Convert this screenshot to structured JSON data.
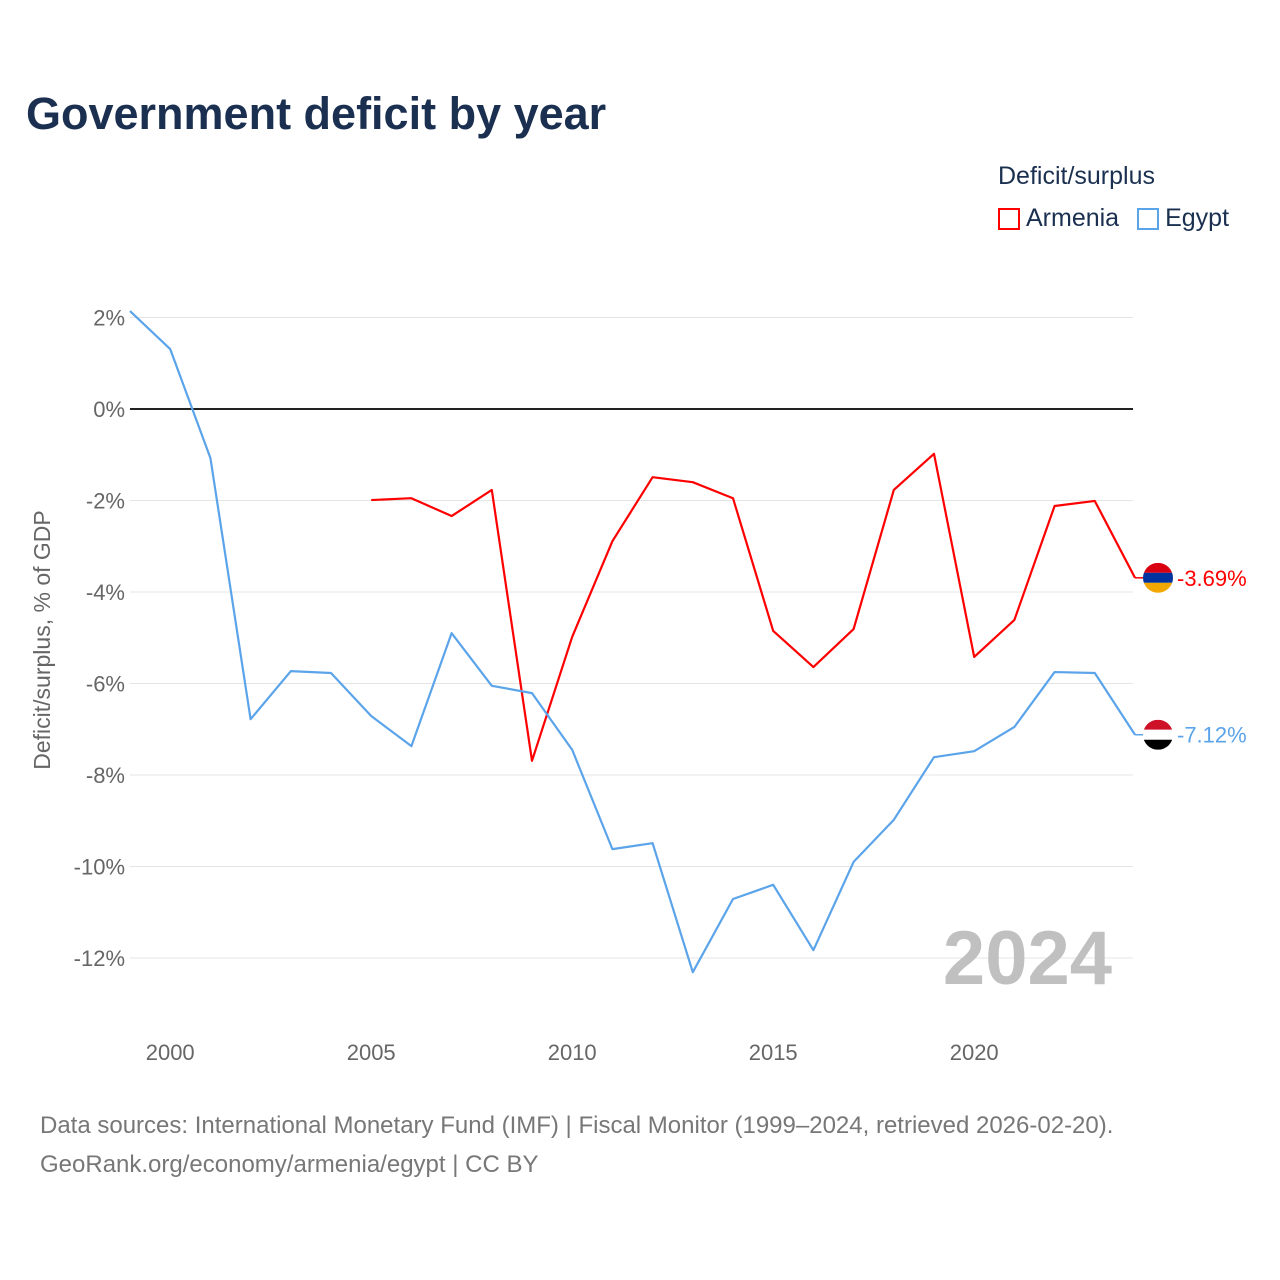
{
  "title": "Government deficit by year",
  "legend": {
    "title": "Deficit/surplus",
    "items": [
      {
        "label": "Armenia",
        "color": "#ff0000"
      },
      {
        "label": "Egypt",
        "color": "#5ba4ea"
      }
    ]
  },
  "source": {
    "line1": "Data sources: International Monetary Fund (IMF) | Fiscal Monitor (1999–2024, retrieved 2026-02-20).",
    "line2": "GeoRank.org/economy/armenia/egypt | CC BY"
  },
  "chart_data": {
    "type": "line",
    "title": "Government deficit by year",
    "ylabel": "Deficit/surplus, % of GDP",
    "xlabel": "",
    "xlim": [
      1999,
      2024
    ],
    "ylim": [
      -13.5,
      2.3
    ],
    "yticks": [
      2,
      0,
      -2,
      -4,
      -6,
      -8,
      -10,
      -12
    ],
    "ytick_labels": [
      "2%",
      "0%",
      "-2%",
      "-4%",
      "-6%",
      "-8%",
      "-10%",
      "-12%"
    ],
    "xticks": [
      2000,
      2005,
      2010,
      2015,
      2020
    ],
    "xtick_labels": [
      "2000",
      "2005",
      "2010",
      "2015",
      "2020"
    ],
    "watermark": "2024",
    "series": [
      {
        "name": "Armenia",
        "color": "#ff0000",
        "end_label": "-3.69%",
        "x": [
          2005,
          2006,
          2007,
          2008,
          2009,
          2010,
          2011,
          2012,
          2013,
          2014,
          2015,
          2016,
          2017,
          2018,
          2019,
          2020,
          2021,
          2022,
          2023,
          2024
        ],
        "values": [
          -1.99,
          -1.95,
          -2.34,
          -1.77,
          -7.69,
          -4.98,
          -2.89,
          -1.49,
          -1.6,
          -1.95,
          -4.85,
          -5.64,
          -4.81,
          -1.77,
          -0.98,
          -5.42,
          -4.61,
          -2.12,
          -2.01,
          -3.69
        ]
      },
      {
        "name": "Egypt",
        "color": "#5ba4ea",
        "end_label": "-7.12%",
        "x": [
          1999,
          2000,
          2001,
          2002,
          2003,
          2004,
          2005,
          2006,
          2007,
          2008,
          2009,
          2010,
          2011,
          2012,
          2013,
          2014,
          2015,
          2016,
          2017,
          2018,
          2019,
          2020,
          2021,
          2022,
          2023,
          2024
        ],
        "values": [
          2.14,
          1.31,
          -1.07,
          -6.78,
          -5.73,
          -5.77,
          -6.71,
          -7.37,
          -4.9,
          -6.05,
          -6.21,
          -7.45,
          -9.62,
          -9.49,
          -12.31,
          -10.71,
          -10.4,
          -11.83,
          -9.9,
          -8.98,
          -7.61,
          -7.48,
          -6.95,
          -5.75,
          -5.77,
          -7.12
        ]
      }
    ]
  }
}
